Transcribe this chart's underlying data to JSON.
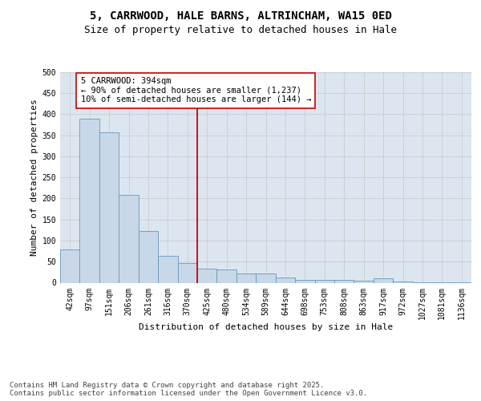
{
  "title_line1": "5, CARRWOOD, HALE BARNS, ALTRINCHAM, WA15 0ED",
  "title_line2": "Size of property relative to detached houses in Hale",
  "xlabel": "Distribution of detached houses by size in Hale",
  "ylabel": "Number of detached properties",
  "categories": [
    "42sqm",
    "97sqm",
    "151sqm",
    "206sqm",
    "261sqm",
    "316sqm",
    "370sqm",
    "425sqm",
    "480sqm",
    "534sqm",
    "589sqm",
    "644sqm",
    "698sqm",
    "753sqm",
    "808sqm",
    "863sqm",
    "917sqm",
    "972sqm",
    "1027sqm",
    "1081sqm",
    "1136sqm"
  ],
  "values": [
    80,
    390,
    357,
    208,
    123,
    63,
    46,
    33,
    32,
    21,
    21,
    12,
    7,
    7,
    7,
    5,
    10,
    3,
    1,
    1,
    1
  ],
  "bar_color": "#c8d8e8",
  "bar_edge_color": "#6699bb",
  "vline_color": "#cc0000",
  "annotation_text": "5 CARRWOOD: 394sqm\n← 90% of detached houses are smaller (1,237)\n10% of semi-detached houses are larger (144) →",
  "annotation_box_color": "#ffffff",
  "annotation_box_edge": "#cc0000",
  "ylim": [
    0,
    500
  ],
  "yticks": [
    0,
    50,
    100,
    150,
    200,
    250,
    300,
    350,
    400,
    450,
    500
  ],
  "grid_color": "#cccccc",
  "bg_color": "#dce6f0",
  "footer": "Contains HM Land Registry data © Crown copyright and database right 2025.\nContains public sector information licensed under the Open Government Licence v3.0.",
  "title_fontsize": 10,
  "subtitle_fontsize": 9,
  "axis_label_fontsize": 8,
  "tick_fontsize": 7,
  "annotation_fontsize": 7.5,
  "footer_fontsize": 6.5
}
